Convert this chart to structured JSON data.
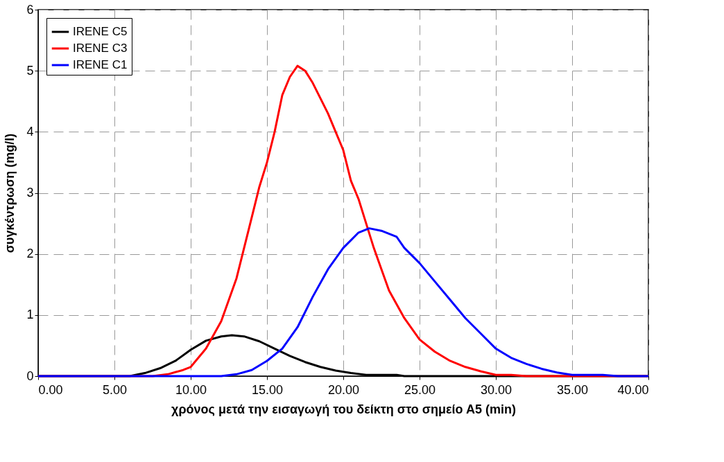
{
  "chart_data": {
    "type": "line",
    "xlabel": "χρόνος μετά την εισαγωγή του δείκτη στο σημείο Α5 (min)",
    "ylabel": "συγκέντρωση (mg/l)",
    "xlim": [
      0,
      40
    ],
    "ylim": [
      0,
      6
    ],
    "xticks": [
      {
        "value": 0,
        "label": "0.00"
      },
      {
        "value": 5,
        "label": "5.00"
      },
      {
        "value": 10,
        "label": "10.00"
      },
      {
        "value": 15,
        "label": "15.00"
      },
      {
        "value": 20,
        "label": "20.00"
      },
      {
        "value": 25,
        "label": "25.00"
      },
      {
        "value": 30,
        "label": "30.00"
      },
      {
        "value": 35,
        "label": "35.00"
      },
      {
        "value": 40,
        "label": "40.00"
      }
    ],
    "yticks": [
      0,
      1,
      2,
      3,
      4,
      5,
      6
    ],
    "grid": true,
    "legend": "top left",
    "marker": "none",
    "line_style": "solid",
    "series": [
      {
        "name": "IRENE C5",
        "color": "#000000",
        "x": [
          0,
          6,
          7,
          8,
          9,
          10,
          11,
          12,
          12.7,
          13.5,
          14.5,
          15.5,
          16.5,
          17.5,
          18.5,
          19.5,
          20.5,
          21.5,
          23.5,
          24,
          40
        ],
        "values": [
          0,
          0,
          0.05,
          0.13,
          0.25,
          0.43,
          0.58,
          0.65,
          0.67,
          0.65,
          0.57,
          0.45,
          0.33,
          0.23,
          0.15,
          0.09,
          0.05,
          0.02,
          0.02,
          0,
          0
        ]
      },
      {
        "name": "IRENE C3",
        "color": "#ff0000",
        "x": [
          0,
          7.5,
          8.5,
          9.5,
          10,
          10.5,
          11,
          12,
          13,
          14,
          14.5,
          15,
          15.5,
          16,
          16.5,
          17,
          17.5,
          18,
          19,
          19.5,
          20,
          20.5,
          21,
          21.5,
          22,
          22.5,
          23,
          24,
          25,
          26,
          27,
          28,
          29,
          30,
          31,
          32,
          40
        ],
        "values": [
          0,
          0,
          0.03,
          0.1,
          0.15,
          0.3,
          0.45,
          0.9,
          1.6,
          2.6,
          3.1,
          3.5,
          4,
          4.6,
          4.9,
          5.08,
          5.0,
          4.8,
          4.3,
          4,
          3.7,
          3.2,
          2.9,
          2.5,
          2.1,
          1.75,
          1.4,
          0.95,
          0.6,
          0.4,
          0.25,
          0.15,
          0.08,
          0.02,
          0.02,
          0,
          0
        ]
      },
      {
        "name": "IRENE C1",
        "color": "#0000ff",
        "x": [
          0,
          12,
          13,
          14,
          15,
          16,
          17,
          18,
          19,
          20,
          21,
          21.7,
          22.5,
          23.5,
          24,
          25,
          26,
          27,
          28,
          29,
          30,
          31,
          32,
          33,
          34,
          35,
          37,
          38,
          40
        ],
        "values": [
          0,
          0,
          0.03,
          0.1,
          0.25,
          0.45,
          0.8,
          1.3,
          1.75,
          2.1,
          2.35,
          2.42,
          2.38,
          2.28,
          2.1,
          1.85,
          1.55,
          1.25,
          0.95,
          0.7,
          0.45,
          0.3,
          0.2,
          0.12,
          0.06,
          0.02,
          0.02,
          0,
          0
        ]
      }
    ]
  }
}
